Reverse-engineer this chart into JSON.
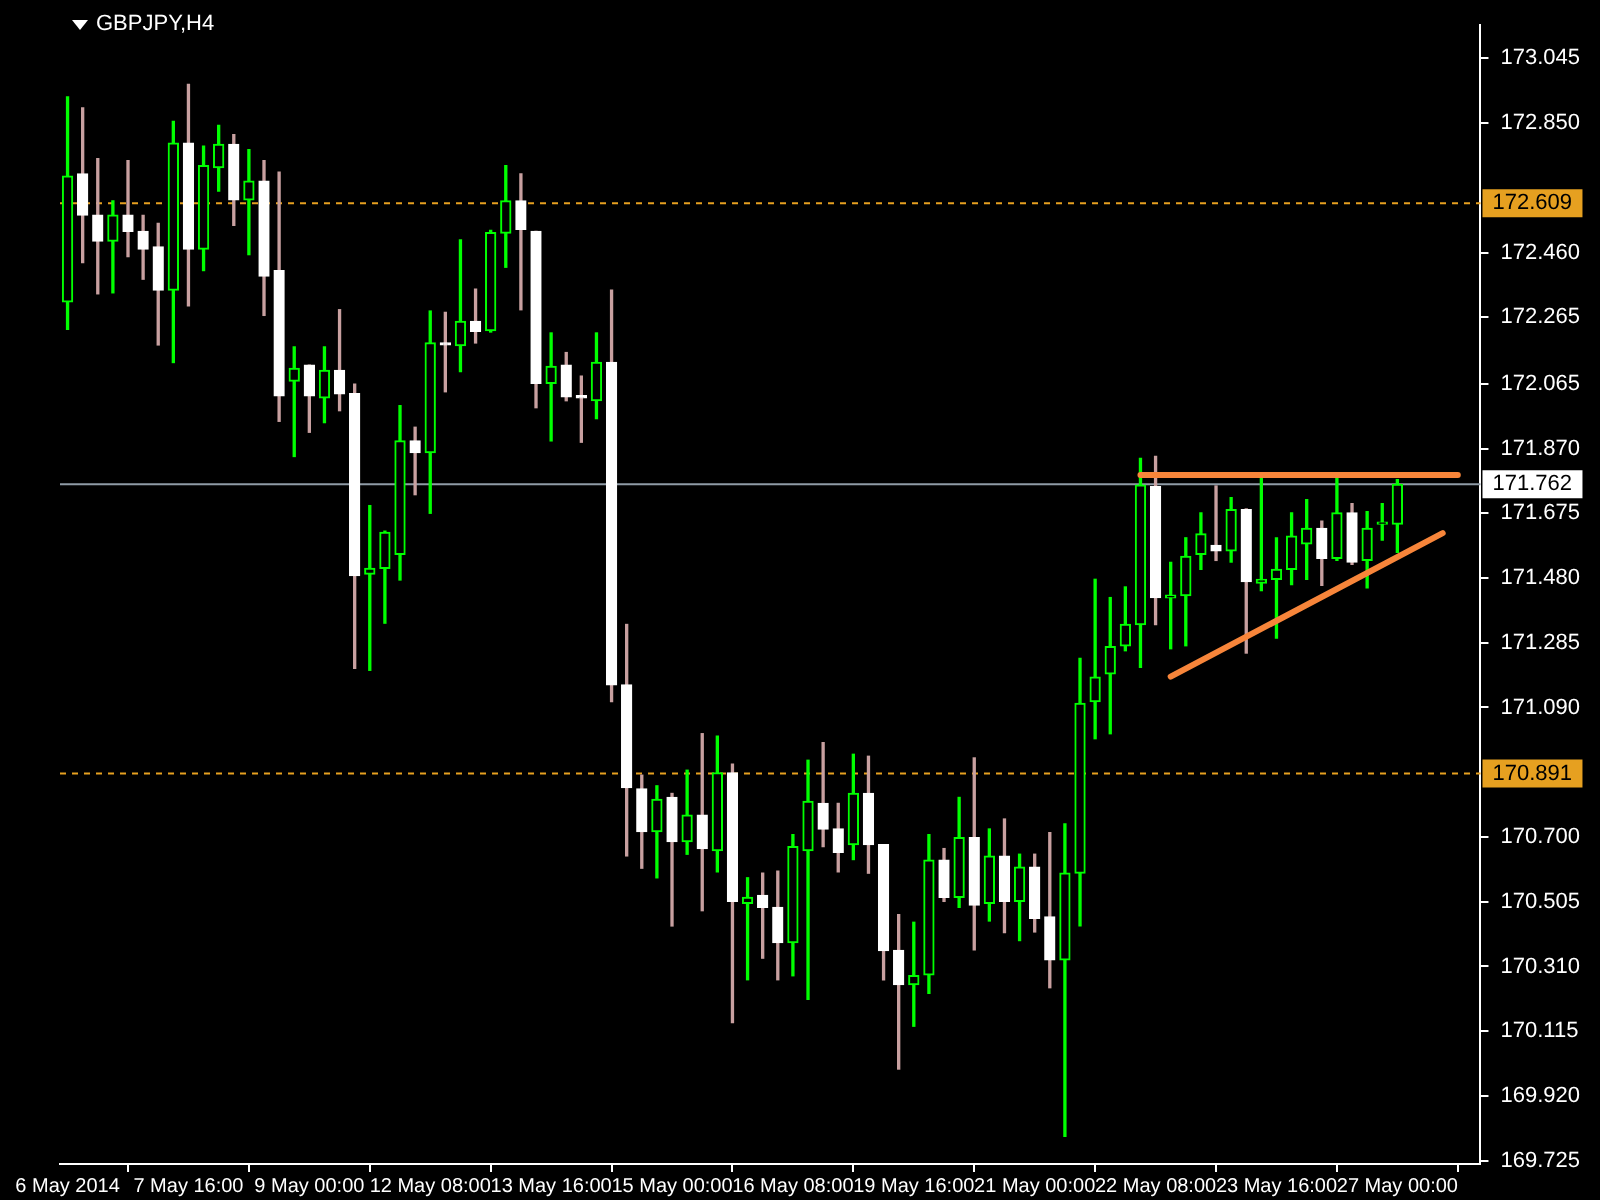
{
  "chart_data": {
    "type": "candlestick",
    "title": "GBPJPY,H4",
    "categories": [
      "6 May 2014",
      null,
      null,
      null,
      null,
      null,
      null,
      null,
      "7 May 16:00",
      null,
      null,
      null,
      null,
      null,
      null,
      null,
      "9 May 00:00",
      null,
      null,
      null,
      null,
      null,
      null,
      null,
      "12 May 08:00",
      null,
      null,
      null,
      null,
      null,
      null,
      null,
      "13 May 16:00",
      null,
      null,
      null,
      null,
      null,
      null,
      null,
      "15 May 00:00",
      null,
      null,
      null,
      null,
      null,
      null,
      null,
      "16 May 08:00",
      null,
      null,
      null,
      null,
      null,
      null,
      null,
      "19 May 16:00",
      null,
      null,
      null,
      null,
      null,
      null,
      null,
      "21 May 00:00",
      null,
      null,
      null,
      null,
      null,
      null,
      null,
      "22 May 08:00",
      null,
      null,
      null,
      null,
      null,
      null,
      null,
      "23 May 16:00",
      null,
      null,
      null,
      null,
      null,
      null,
      null,
      "27 May 00:00",
      null,
      null,
      null,
      null,
      null
    ],
    "ohlc": [
      [
        172.312,
        172.929,
        172.229,
        172.69
      ],
      [
        172.697,
        172.896,
        172.43,
        172.573
      ],
      [
        172.573,
        172.743,
        172.336,
        172.495
      ],
      [
        172.495,
        172.616,
        172.339,
        172.573
      ],
      [
        172.573,
        172.737,
        172.448,
        172.524
      ],
      [
        172.524,
        172.572,
        172.38,
        172.471
      ],
      [
        172.477,
        172.548,
        172.182,
        172.347
      ],
      [
        172.347,
        172.855,
        172.129,
        172.79
      ],
      [
        172.79,
        172.967,
        172.3,
        172.471
      ],
      [
        172.471,
        172.781,
        172.406,
        172.722
      ],
      [
        172.716,
        172.843,
        172.645,
        172.786
      ],
      [
        172.786,
        172.815,
        172.542,
        172.619
      ],
      [
        172.619,
        172.77,
        172.454,
        172.675
      ],
      [
        172.675,
        172.737,
        172.271,
        172.389
      ],
      [
        172.406,
        172.702,
        171.952,
        172.029
      ],
      [
        172.073,
        172.176,
        171.846,
        172.111
      ],
      [
        172.121,
        172.121,
        171.919,
        172.029
      ],
      [
        172.023,
        172.176,
        171.948,
        172.105
      ],
      [
        172.105,
        172.288,
        171.984,
        172.035
      ],
      [
        172.035,
        172.064,
        171.208,
        171.487
      ],
      [
        171.492,
        171.698,
        171.202,
        171.509
      ],
      [
        171.509,
        171.621,
        171.344,
        171.617
      ],
      [
        171.551,
        171.999,
        171.474,
        171.893
      ],
      [
        171.893,
        171.934,
        171.731,
        171.858
      ],
      [
        171.858,
        172.284,
        171.675,
        172.188
      ],
      [
        172.188,
        172.28,
        172.041,
        172.182
      ],
      [
        172.18,
        172.498,
        172.102,
        172.253
      ],
      [
        172.253,
        172.35,
        172.188,
        172.223
      ],
      [
        172.225,
        172.527,
        172.221,
        172.52
      ],
      [
        172.519,
        172.722,
        172.416,
        172.616
      ],
      [
        172.616,
        172.697,
        172.288,
        172.53
      ],
      [
        172.524,
        172.524,
        171.993,
        172.066
      ],
      [
        172.066,
        172.218,
        171.893,
        172.117
      ],
      [
        172.121,
        172.159,
        172.014,
        172.026
      ],
      [
        172.029,
        172.088,
        171.889,
        172.023
      ],
      [
        172.014,
        172.218,
        171.96,
        172.129
      ],
      [
        172.129,
        172.347,
        171.108,
        171.158
      ],
      [
        171.158,
        171.34,
        170.643,
        170.849
      ],
      [
        170.845,
        170.886,
        170.606,
        170.716
      ],
      [
        170.716,
        170.854,
        170.577,
        170.813
      ],
      [
        170.819,
        170.831,
        170.432,
        170.686
      ],
      [
        170.686,
        170.901,
        170.648,
        170.766
      ],
      [
        170.766,
        171.011,
        170.478,
        170.665
      ],
      [
        170.659,
        171.004,
        170.595,
        170.893
      ],
      [
        170.893,
        170.919,
        170.141,
        170.506
      ],
      [
        170.5,
        170.577,
        170.27,
        170.518
      ],
      [
        170.524,
        170.591,
        170.335,
        170.488
      ],
      [
        170.488,
        170.597,
        170.27,
        170.382
      ],
      [
        170.382,
        170.707,
        170.282,
        170.671
      ],
      [
        170.659,
        170.931,
        170.211,
        170.807
      ],
      [
        170.801,
        170.984,
        170.671,
        170.724
      ],
      [
        170.724,
        170.801,
        170.595,
        170.654
      ],
      [
        170.677,
        170.949,
        170.632,
        170.831
      ],
      [
        170.831,
        170.943,
        170.591,
        170.677
      ],
      [
        170.677,
        170.677,
        170.27,
        170.358
      ],
      [
        170.358,
        170.466,
        170.001,
        170.255
      ],
      [
        170.255,
        170.443,
        170.13,
        170.282
      ],
      [
        170.285,
        170.707,
        170.229,
        170.63
      ],
      [
        170.63,
        170.665,
        170.506,
        170.518
      ],
      [
        170.518,
        170.819,
        170.488,
        170.698
      ],
      [
        170.698,
        170.938,
        170.36,
        170.495
      ],
      [
        170.5,
        170.724,
        170.447,
        170.642
      ],
      [
        170.642,
        170.754,
        170.412,
        170.506
      ],
      [
        170.506,
        170.648,
        170.388,
        170.609
      ],
      [
        170.609,
        170.648,
        170.414,
        170.455
      ],
      [
        170.459,
        170.713,
        170.246,
        170.33
      ],
      [
        170.33,
        170.739,
        169.798,
        170.591
      ],
      [
        170.591,
        171.238,
        170.432,
        171.102
      ],
      [
        171.108,
        171.476,
        170.996,
        171.181
      ],
      [
        171.191,
        171.421,
        171.011,
        171.273
      ],
      [
        171.276,
        171.453,
        171.261,
        171.34
      ],
      [
        171.34,
        171.84,
        171.211,
        171.76
      ],
      [
        171.755,
        171.846,
        171.34,
        171.421
      ],
      [
        171.42,
        171.527,
        171.267,
        171.428
      ],
      [
        171.427,
        171.601,
        171.276,
        171.545
      ],
      [
        171.551,
        171.676,
        171.506,
        171.613
      ],
      [
        171.578,
        171.757,
        171.533,
        171.562
      ],
      [
        171.562,
        171.722,
        171.528,
        171.686
      ],
      [
        171.686,
        171.688,
        171.254,
        171.469
      ],
      [
        171.465,
        171.783,
        171.442,
        171.476
      ],
      [
        171.476,
        171.601,
        171.299,
        171.506
      ],
      [
        171.506,
        171.676,
        171.46,
        171.606
      ],
      [
        171.583,
        171.716,
        171.476,
        171.629
      ],
      [
        171.629,
        171.651,
        171.458,
        171.539
      ],
      [
        171.539,
        171.783,
        171.533,
        171.676
      ],
      [
        171.676,
        171.704,
        171.521,
        171.528
      ],
      [
        171.533,
        171.68,
        171.45,
        171.629
      ],
      [
        171.642,
        171.704,
        171.594,
        171.646
      ],
      [
        171.642,
        171.776,
        171.557,
        171.762
      ],
      null,
      null,
      null,
      null,
      null
    ],
    "colors": [
      "#00ff00",
      "#ffffff",
      "#ffffff",
      "#00ff00",
      "#ffffff",
      "#ffffff",
      "#ffffff",
      "#00ff00",
      "#ffffff",
      "#00ff00",
      "#00ff00",
      "#ffffff",
      "#00ff00",
      "#ffffff",
      "#ffffff",
      "#00ff00",
      "#ffffff",
      "#00ff00",
      "#ffffff",
      "#ffffff",
      "#00ff00",
      "#00ff00",
      "#00ff00",
      "#ffffff",
      "#00ff00",
      "#ffffff",
      "#00ff00",
      "#ffffff",
      "#00ff00",
      "#00ff00",
      "#ffffff",
      "#ffffff",
      "#00ff00",
      "#ffffff",
      "#ffffff",
      "#00ff00",
      "#ffffff",
      "#ffffff",
      "#ffffff",
      "#00ff00",
      "#ffffff",
      "#00ff00",
      "#ffffff",
      "#00ff00",
      "#ffffff",
      "#00ff00",
      "#ffffff",
      "#ffffff",
      "#00ff00",
      "#00ff00",
      "#ffffff",
      "#ffffff",
      "#00ff00",
      "#ffffff",
      "#ffffff",
      "#ffffff",
      "#00ff00",
      "#00ff00",
      "#ffffff",
      "#00ff00",
      "#ffffff",
      "#00ff00",
      "#ffffff",
      "#00ff00",
      "#ffffff",
      "#ffffff",
      "#00ff00",
      "#00ff00",
      "#00ff00",
      "#00ff00",
      "#00ff00",
      "#00ff00",
      "#ffffff",
      "#00ff00",
      "#00ff00",
      "#00ff00",
      "#ffffff",
      "#00ff00",
      "#ffffff",
      "#00ff00",
      "#00ff00",
      "#00ff00",
      "#00ff00",
      "#ffffff",
      "#00ff00",
      "#ffffff",
      "#00ff00",
      "#00ff00",
      "#00ff00",
      null,
      null,
      null,
      null,
      null
    ],
    "series": [
      {
        "type": "line",
        "color": "#f7853a",
        "values": [
          null,
          null,
          null,
          null,
          null,
          null,
          null,
          null,
          null,
          null,
          null,
          null,
          null,
          null,
          null,
          null,
          null,
          null,
          null,
          null,
          null,
          null,
          null,
          null,
          null,
          null,
          null,
          null,
          null,
          null,
          null,
          null,
          null,
          null,
          null,
          null,
          null,
          null,
          null,
          null,
          null,
          null,
          null,
          null,
          null,
          null,
          null,
          null,
          null,
          null,
          null,
          null,
          null,
          null,
          null,
          null,
          null,
          null,
          null,
          null,
          null,
          null,
          null,
          null,
          null,
          null,
          null,
          null,
          null,
          null,
          null,
          171.79,
          null,
          null,
          null,
          null,
          null,
          null,
          null,
          null,
          null,
          null,
          null,
          null,
          null,
          null,
          null,
          null,
          null,
          null,
          null,
          null,
          171.79,
          null
        ]
      },
      {
        "type": "line",
        "color": "#f7853a",
        "values": [
          null,
          null,
          null,
          null,
          null,
          null,
          null,
          null,
          null,
          null,
          null,
          null,
          null,
          null,
          null,
          null,
          null,
          null,
          null,
          null,
          null,
          null,
          null,
          null,
          null,
          null,
          null,
          null,
          null,
          null,
          null,
          null,
          null,
          null,
          null,
          null,
          null,
          null,
          null,
          null,
          null,
          null,
          null,
          null,
          null,
          null,
          null,
          null,
          null,
          null,
          null,
          null,
          null,
          null,
          null,
          null,
          null,
          null,
          null,
          null,
          null,
          null,
          null,
          null,
          null,
          null,
          null,
          null,
          null,
          null,
          null,
          null,
          null,
          171.183,
          null,
          null,
          null,
          null,
          null,
          null,
          null,
          null,
          null,
          null,
          null,
          null,
          null,
          null,
          null,
          null,
          null,
          171.615,
          null,
          null
        ]
      }
    ],
    "ylim": [
      169.715,
      173.145
    ],
    "yticks": [
      {
        "value": 173.045,
        "label": "173.045"
      },
      {
        "value": 172.85,
        "label": "172.850"
      },
      {
        "value": 172.46,
        "label": "172.460"
      },
      {
        "value": 172.265,
        "label": "172.265"
      },
      {
        "value": 172.065,
        "label": "172.065"
      },
      {
        "value": 171.87,
        "label": "171.870"
      },
      {
        "value": 171.675,
        "label": "171.675"
      },
      {
        "value": 171.48,
        "label": "171.480"
      },
      {
        "value": 171.285,
        "label": "171.285"
      },
      {
        "value": 171.09,
        "label": "171.090"
      },
      {
        "value": 170.7,
        "label": "170.700"
      },
      {
        "value": 170.505,
        "label": "170.505"
      },
      {
        "value": 170.31,
        "label": "170.310"
      },
      {
        "value": 170.115,
        "label": "170.115"
      },
      {
        "value": 169.92,
        "label": "169.920"
      },
      {
        "value": 169.725,
        "label": "169.725"
      }
    ],
    "ref_lines": [
      {
        "axis": "y",
        "value": 172.609,
        "label": "172.609",
        "color": "#e6a020",
        "line_style": "dashed"
      },
      {
        "axis": "y",
        "value": 170.891,
        "label": "170.891",
        "color": "#e6a020",
        "line_style": "dashed"
      },
      {
        "axis": "y",
        "value": 171.762,
        "label": "171.762",
        "color": "#8f9ba6",
        "line_style": "solid"
      }
    ]
  }
}
